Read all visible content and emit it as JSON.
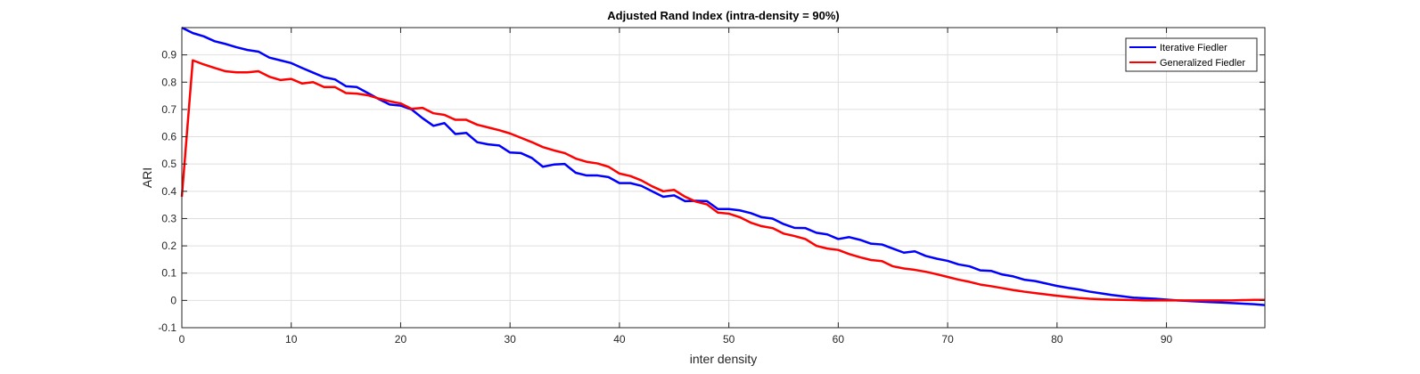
{
  "chart_data": {
    "type": "line",
    "title": "Adjusted Rand Index (intra-density = 90%)",
    "xlabel": "inter density",
    "ylabel": "ARI",
    "xlim": [
      0,
      99
    ],
    "ylim": [
      -0.1,
      1.0
    ],
    "xticks": [
      0,
      10,
      20,
      30,
      40,
      50,
      60,
      70,
      80,
      90
    ],
    "yticks": [
      -0.1,
      0,
      0.1,
      0.2,
      0.3,
      0.4,
      0.5,
      0.6,
      0.7,
      0.8,
      0.9
    ],
    "ytick_labels": [
      "-0.1",
      "0",
      "0.1",
      "0.2",
      "0.3",
      "0.4",
      "0.5",
      "0.6",
      "0.7",
      "0.8",
      "0.9"
    ],
    "xtick_labels": [
      "0",
      "10",
      "20",
      "30",
      "40",
      "50",
      "60",
      "70",
      "80",
      "90"
    ],
    "grid": true,
    "legend_position": "top-right",
    "series": [
      {
        "name": "Iterative Fiedler",
        "color": "#0000ff",
        "x": [
          0,
          1,
          2,
          3,
          4,
          5,
          6,
          7,
          8,
          9,
          10,
          11,
          12,
          13,
          14,
          15,
          16,
          17,
          18,
          19,
          20,
          21,
          22,
          23,
          24,
          25,
          26,
          27,
          28,
          29,
          30,
          31,
          32,
          33,
          34,
          35,
          36,
          37,
          38,
          39,
          40,
          41,
          42,
          43,
          44,
          45,
          46,
          47,
          48,
          49,
          50,
          51,
          52,
          53,
          54,
          55,
          56,
          57,
          58,
          59,
          60,
          61,
          62,
          63,
          64,
          65,
          66,
          67,
          68,
          69,
          70,
          71,
          72,
          73,
          74,
          75,
          76,
          77,
          78,
          79,
          80,
          81,
          82,
          83,
          84,
          85,
          86,
          87,
          88,
          89,
          90,
          91,
          92,
          93,
          94,
          95,
          96,
          97,
          98,
          99
        ],
        "values": [
          1.0,
          0.98,
          0.968,
          0.95,
          0.94,
          0.928,
          0.918,
          0.912,
          0.89,
          0.88,
          0.87,
          0.852,
          0.835,
          0.818,
          0.81,
          0.785,
          0.782,
          0.76,
          0.738,
          0.718,
          0.714,
          0.7,
          0.668,
          0.64,
          0.65,
          0.61,
          0.614,
          0.58,
          0.572,
          0.568,
          0.542,
          0.54,
          0.522,
          0.49,
          0.498,
          0.5,
          0.468,
          0.458,
          0.458,
          0.452,
          0.43,
          0.43,
          0.42,
          0.4,
          0.38,
          0.385,
          0.364,
          0.365,
          0.364,
          0.335,
          0.335,
          0.33,
          0.32,
          0.305,
          0.3,
          0.28,
          0.266,
          0.265,
          0.248,
          0.242,
          0.225,
          0.232,
          0.222,
          0.208,
          0.205,
          0.19,
          0.175,
          0.18,
          0.163,
          0.153,
          0.145,
          0.132,
          0.125,
          0.11,
          0.108,
          0.095,
          0.088,
          0.076,
          0.071,
          0.062,
          0.053,
          0.046,
          0.04,
          0.032,
          0.026,
          0.02,
          0.015,
          0.01,
          0.008,
          0.006,
          0.003,
          0.0,
          -0.002,
          -0.004,
          -0.006,
          -0.008,
          -0.01,
          -0.012,
          -0.014,
          -0.017
        ]
      },
      {
        "name": "Generalized Fiedler",
        "color": "#ff0000",
        "x": [
          0,
          1,
          2,
          3,
          4,
          5,
          6,
          7,
          8,
          9,
          10,
          11,
          12,
          13,
          14,
          15,
          16,
          17,
          18,
          19,
          20,
          21,
          22,
          23,
          24,
          25,
          26,
          27,
          28,
          29,
          30,
          31,
          32,
          33,
          34,
          35,
          36,
          37,
          38,
          39,
          40,
          41,
          42,
          43,
          44,
          45,
          46,
          47,
          48,
          49,
          50,
          51,
          52,
          53,
          54,
          55,
          56,
          57,
          58,
          59,
          60,
          61,
          62,
          63,
          64,
          65,
          66,
          67,
          68,
          69,
          70,
          71,
          72,
          73,
          74,
          75,
          76,
          77,
          78,
          79,
          80,
          81,
          82,
          83,
          84,
          85,
          86,
          87,
          88,
          89,
          90,
          91,
          92,
          93,
          94,
          95,
          96,
          97,
          98,
          99
        ],
        "values": [
          0.38,
          0.88,
          0.865,
          0.852,
          0.84,
          0.836,
          0.836,
          0.84,
          0.82,
          0.808,
          0.812,
          0.795,
          0.8,
          0.782,
          0.782,
          0.76,
          0.758,
          0.752,
          0.74,
          0.73,
          0.722,
          0.702,
          0.706,
          0.686,
          0.68,
          0.662,
          0.662,
          0.644,
          0.634,
          0.624,
          0.612,
          0.596,
          0.58,
          0.562,
          0.55,
          0.54,
          0.52,
          0.508,
          0.502,
          0.49,
          0.465,
          0.456,
          0.44,
          0.418,
          0.4,
          0.405,
          0.38,
          0.362,
          0.352,
          0.322,
          0.318,
          0.305,
          0.285,
          0.272,
          0.265,
          0.245,
          0.236,
          0.225,
          0.2,
          0.19,
          0.185,
          0.17,
          0.158,
          0.148,
          0.144,
          0.125,
          0.117,
          0.112,
          0.105,
          0.096,
          0.086,
          0.076,
          0.068,
          0.058,
          0.052,
          0.045,
          0.038,
          0.032,
          0.027,
          0.022,
          0.017,
          0.013,
          0.009,
          0.006,
          0.004,
          0.003,
          0.002,
          0.001,
          0.0,
          0.0,
          0.0,
          0.0,
          0.0,
          0.0,
          0.0,
          0.0,
          0.0,
          0.001,
          0.002,
          0.002
        ]
      }
    ]
  }
}
